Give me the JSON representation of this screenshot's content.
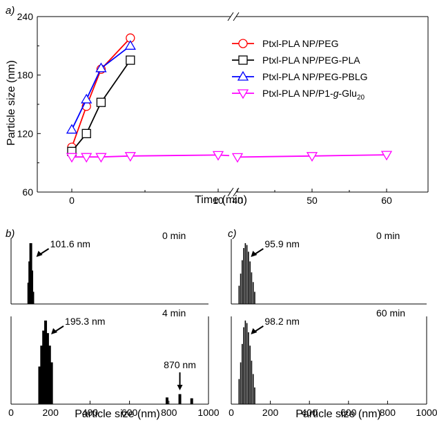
{
  "colors": {
    "red": "#ff0000",
    "black": "#000000",
    "blue": "#0000ff",
    "magenta": "#ff00ff"
  },
  "chart_data": [
    {
      "panel": "a)",
      "type": "line",
      "ylabel": "Particle size (nm)",
      "xlabel": "Time (min)",
      "ylim": [
        60,
        240
      ],
      "yticks": [
        "60",
        "120",
        "180",
        "240"
      ],
      "x_segments": [
        [
          0,
          10
        ],
        [
          40,
          60
        ]
      ],
      "xticks_seg1": [
        "0",
        "10"
      ],
      "xticks_seg2": [
        "40",
        "50",
        "60"
      ],
      "axis_break": true,
      "legend_position": "top-right",
      "series": [
        {
          "name": "Ptxl-PLA NP/PEG",
          "color_key": "red",
          "marker": "circle",
          "points": [
            [
              0,
              106
            ],
            [
              1,
              148
            ],
            [
              2,
              186
            ],
            [
              4,
              218
            ]
          ]
        },
        {
          "name": "Ptxl-PLA NP/PEG-PLA",
          "color_key": "black",
          "marker": "square",
          "points": [
            [
              0,
              101.6
            ],
            [
              1,
              120
            ],
            [
              2,
              152
            ],
            [
              4,
              195.3
            ]
          ]
        },
        {
          "name": "Ptxl-PLA NP/PEG-PBLG",
          "color_key": "blue",
          "marker": "triangle-up",
          "points": [
            [
              0,
              124
            ],
            [
              1,
              155
            ],
            [
              2,
              187
            ],
            [
              4,
              210
            ]
          ]
        },
        {
          "name_parts": [
            "Ptxl-PLA NP/P1-",
            "g",
            "-Glu",
            "20"
          ],
          "color_key": "magenta",
          "marker": "triangle-down",
          "points": [
            [
              0,
              96
            ],
            [
              1,
              96
            ],
            [
              2,
              96
            ],
            [
              4,
              97
            ],
            [
              10,
              98
            ],
            [
              40,
              95.9
            ],
            [
              50,
              97
            ],
            [
              60,
              98.2
            ]
          ]
        }
      ]
    },
    {
      "panel": "b)",
      "type": "bar",
      "xlabel": "Particle size (nm)",
      "xlim": [
        0,
        1000
      ],
      "xticks": [
        "0",
        "200",
        "400",
        "600",
        "800",
        "1000"
      ],
      "subplots": [
        {
          "time_label": "0 min",
          "peak_label": "101.6 nm",
          "bars": [
            [
              90,
              0.35
            ],
            [
              95,
              0.7
            ],
            [
              100,
              1.0
            ],
            [
              105,
              0.55
            ],
            [
              110,
              0.2
            ]
          ]
        },
        {
          "time_label": "4 min",
          "peak_label": "195.3 nm",
          "secondary_label": "870 nm",
          "bars": [
            [
              145,
              0.45
            ],
            [
              155,
              0.7
            ],
            [
              165,
              0.88
            ],
            [
              175,
              1.0
            ],
            [
              185,
              0.85
            ],
            [
              195,
              0.7
            ],
            [
              205,
              0.5
            ],
            [
              790,
              0.08
            ],
            [
              855,
              0.12
            ],
            [
              915,
              0.07
            ]
          ]
        }
      ]
    },
    {
      "panel": "c)",
      "type": "bar",
      "xlabel": "Particle size (nm)",
      "xlim": [
        0,
        1000
      ],
      "xticks": [
        "0",
        "200",
        "400",
        "600",
        "800",
        "1000"
      ],
      "subplots": [
        {
          "time_label": "0 min",
          "peak_label": "95.9 nm",
          "bars": [
            [
              40,
              0.3
            ],
            [
              48,
              0.5
            ],
            [
              56,
              0.72
            ],
            [
              64,
              0.92
            ],
            [
              72,
              1.0
            ],
            [
              80,
              0.97
            ],
            [
              88,
              0.86
            ],
            [
              96,
              0.7
            ],
            [
              104,
              0.52
            ],
            [
              112,
              0.36
            ],
            [
              120,
              0.2
            ]
          ]
        },
        {
          "time_label": "60 min",
          "peak_label": "98.2 nm",
          "bars": [
            [
              40,
              0.3
            ],
            [
              48,
              0.5
            ],
            [
              56,
              0.72
            ],
            [
              64,
              0.92
            ],
            [
              72,
              1.0
            ],
            [
              80,
              0.97
            ],
            [
              88,
              0.86
            ],
            [
              96,
              0.7
            ],
            [
              104,
              0.52
            ],
            [
              112,
              0.36
            ],
            [
              120,
              0.2
            ]
          ]
        }
      ]
    }
  ]
}
